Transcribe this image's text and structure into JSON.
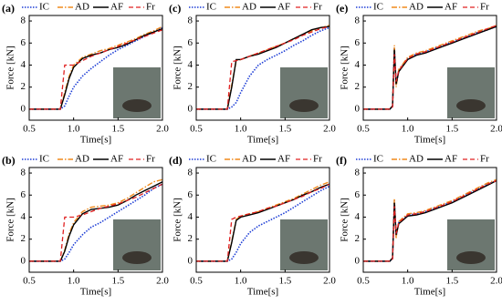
{
  "chart_data": [
    {
      "type": "line",
      "label": "(a)",
      "xlabel": "Time[s]",
      "ylabel": "Force [kN]",
      "x": [
        0.5,
        0.6,
        0.7,
        0.8,
        0.85,
        0.9,
        0.95,
        1.0,
        1.1,
        1.2,
        1.3,
        1.4,
        1.5,
        1.6,
        1.7,
        1.8,
        1.9,
        2.0
      ],
      "xlim": [
        0.5,
        2.0
      ],
      "xticks": [
        0.5,
        {
          "value": 1,
          "label": "1.0"
        },
        1.5,
        {
          "value": 2,
          "label": "2.0"
        }
      ],
      "ylim": [
        -1,
        8.5
      ],
      "yticks": [
        0,
        2,
        4,
        6,
        8
      ],
      "series": [
        {
          "name": "IC",
          "color": "#1f3fd6",
          "values": [
            0,
            0,
            0,
            0,
            0,
            0.3,
            1.2,
            2,
            3,
            3.7,
            4.3,
            4.9,
            5.4,
            5.8,
            6.2,
            6.6,
            7,
            7.4
          ]
        },
        {
          "name": "AD",
          "color": "#f08a1c",
          "values": [
            0,
            0,
            0,
            0,
            0,
            1.5,
            3,
            4,
            4.7,
            5,
            5.3,
            5.5,
            5.8,
            6.1,
            6.4,
            6.8,
            7.1,
            7.5
          ]
        },
        {
          "name": "AF",
          "color": "#000000",
          "values": [
            0,
            0,
            0,
            0,
            0,
            1.3,
            2.8,
            3.8,
            4.6,
            4.9,
            5.1,
            5.4,
            5.6,
            5.9,
            6.3,
            6.7,
            7,
            7.3
          ]
        },
        {
          "name": "Fr",
          "color": "#e02020",
          "values": [
            0,
            0,
            0,
            0,
            0,
            4,
            4,
            4,
            4.4,
            4.8,
            5.1,
            5.4,
            5.7,
            6,
            6.3,
            6.6,
            6.9,
            7.2
          ]
        }
      ]
    },
    {
      "type": "line",
      "label": "(c)",
      "xlabel": "Time[s]",
      "ylabel": "Force [kN]",
      "x": [
        0.5,
        0.6,
        0.7,
        0.8,
        0.85,
        0.9,
        0.95,
        1.0,
        1.1,
        1.2,
        1.3,
        1.4,
        1.5,
        1.6,
        1.7,
        1.8,
        1.9,
        2.0
      ],
      "xlim": [
        0.5,
        2.0
      ],
      "xticks": [
        0.5,
        {
          "value": 1,
          "label": "1.0"
        },
        1.5,
        {
          "value": 2,
          "label": "2.0"
        }
      ],
      "ylim": [
        -1,
        8.5
      ],
      "yticks": [
        0,
        2,
        4,
        6,
        8
      ],
      "series": [
        {
          "name": "IC",
          "color": "#1f3fd6",
          "values": [
            0,
            0,
            0,
            0,
            0,
            0.2,
            0.6,
            1.5,
            3,
            4,
            4.5,
            4.9,
            5.3,
            5.8,
            6.2,
            6.7,
            7.1,
            7.4
          ]
        },
        {
          "name": "AD",
          "color": "#f08a1c",
          "values": [
            0,
            0,
            0,
            0,
            0,
            2.2,
            4.4,
            4.5,
            4.8,
            5.1,
            5.4,
            5.7,
            6,
            6.4,
            6.8,
            7.1,
            7.4,
            7.6
          ]
        },
        {
          "name": "AF",
          "color": "#000000",
          "values": [
            0,
            0,
            0,
            0,
            0,
            2,
            4.5,
            4.5,
            4.8,
            5,
            5.3,
            5.6,
            6,
            6.4,
            6.8,
            7.2,
            7.4,
            7.5
          ]
        },
        {
          "name": "Fr",
          "color": "#e02020",
          "values": [
            0,
            0,
            0,
            0,
            0,
            4.3,
            4.4,
            4.5,
            4.8,
            5.1,
            5.4,
            5.7,
            6,
            6.3,
            6.7,
            7,
            7.3,
            7.5
          ]
        }
      ]
    },
    {
      "type": "line",
      "label": "(e)",
      "xlabel": "Time[s]",
      "ylabel": "Force [kN]",
      "x": [
        0.5,
        0.6,
        0.7,
        0.8,
        0.83,
        0.85,
        0.87,
        0.9,
        1.0,
        1.1,
        1.2,
        1.3,
        1.4,
        1.5,
        1.6,
        1.7,
        1.8,
        1.9,
        2.0
      ],
      "xlim": [
        0.5,
        2.0
      ],
      "xticks": [
        0.5,
        {
          "value": 1,
          "label": "1.0"
        },
        1.5,
        {
          "value": 2,
          "label": "2.0"
        }
      ],
      "ylim": [
        -1,
        8.5
      ],
      "yticks": [
        0,
        2,
        4,
        6,
        8
      ],
      "series": [
        {
          "name": "IC",
          "color": "#1f3fd6",
          "values": [
            0,
            0,
            0,
            0,
            0.3,
            5.6,
            2.2,
            3.5,
            4.6,
            5,
            5.2,
            5.5,
            5.8,
            6.1,
            6.4,
            6.7,
            7,
            7.2,
            7.5
          ]
        },
        {
          "name": "AD",
          "color": "#f08a1c",
          "values": [
            0,
            0,
            0,
            0,
            0.4,
            5.8,
            2,
            3.6,
            4.7,
            5.1,
            5.3,
            5.6,
            5.9,
            6.2,
            6.5,
            6.8,
            7.1,
            7.3,
            7.6
          ]
        },
        {
          "name": "AF",
          "color": "#000000",
          "values": [
            0,
            0,
            0,
            0,
            0.3,
            5.4,
            2.3,
            3.4,
            4.5,
            4.9,
            5.1,
            5.4,
            5.7,
            6,
            6.3,
            6.6,
            6.9,
            7.2,
            7.5
          ]
        },
        {
          "name": "Fr",
          "color": "#e02020",
          "values": [
            0,
            0,
            0,
            0,
            0.2,
            5,
            2.5,
            3.5,
            4.6,
            5,
            5.2,
            5.5,
            5.8,
            6.1,
            6.4,
            6.7,
            7,
            7.3,
            7.6
          ]
        }
      ]
    },
    {
      "type": "line",
      "label": "(b)",
      "xlabel": "Time[s]",
      "ylabel": "Force [kN]",
      "x": [
        0.5,
        0.6,
        0.7,
        0.8,
        0.85,
        0.9,
        0.95,
        1.0,
        1.1,
        1.2,
        1.3,
        1.4,
        1.5,
        1.6,
        1.7,
        1.8,
        1.9,
        2.0
      ],
      "xlim": [
        0.5,
        2.0
      ],
      "xticks": [
        0.5,
        {
          "value": 1,
          "label": "1.0"
        },
        1.5,
        {
          "value": 2,
          "label": "2.0"
        }
      ],
      "ylim": [
        -1,
        8.5
      ],
      "yticks": [
        0,
        2,
        4,
        6,
        8
      ],
      "series": [
        {
          "name": "IC",
          "color": "#1f3fd6",
          "values": [
            0,
            0,
            0,
            0,
            0,
            0.2,
            0.8,
            1.5,
            2.4,
            3.1,
            3.5,
            4,
            4.5,
            5,
            5.5,
            6,
            6.6,
            7
          ]
        },
        {
          "name": "AD",
          "color": "#f08a1c",
          "values": [
            0,
            0,
            0,
            0,
            0,
            1,
            2.5,
            3.5,
            4.5,
            4.9,
            5,
            5.1,
            5.3,
            5.7,
            6.2,
            6.7,
            7.2,
            7.4
          ]
        },
        {
          "name": "AF",
          "color": "#000000",
          "values": [
            0,
            0,
            0,
            0,
            0,
            0.9,
            2.3,
            3.3,
            4.3,
            4.7,
            4.8,
            4.9,
            5.1,
            5.5,
            6,
            6.4,
            6.8,
            7.2
          ]
        },
        {
          "name": "Fr",
          "color": "#e02020",
          "values": [
            0,
            0,
            0,
            0,
            0,
            4,
            4,
            4,
            4.2,
            4.5,
            4.8,
            5,
            5.2,
            5.5,
            5.8,
            6.2,
            6.6,
            7
          ]
        }
      ]
    },
    {
      "type": "line",
      "label": "(d)",
      "xlabel": "Time[s]",
      "ylabel": "Force [kN]",
      "x": [
        0.5,
        0.6,
        0.7,
        0.8,
        0.85,
        0.9,
        0.95,
        1.0,
        1.1,
        1.2,
        1.3,
        1.4,
        1.5,
        1.6,
        1.7,
        1.8,
        1.9,
        2.0
      ],
      "xlim": [
        0.5,
        2.0
      ],
      "xticks": [
        0.5,
        {
          "value": 1,
          "label": "1.0"
        },
        1.5,
        {
          "value": 2,
          "label": "2.0"
        }
      ],
      "ylim": [
        -1,
        8.5
      ],
      "yticks": [
        0,
        2,
        4,
        6,
        8
      ],
      "series": [
        {
          "name": "IC",
          "color": "#1f3fd6",
          "values": [
            0,
            0,
            0,
            0,
            0,
            0.2,
            0.8,
            1.6,
            2.6,
            3.2,
            3.6,
            4,
            4.4,
            4.9,
            5.4,
            5.9,
            6.4,
            6.8
          ]
        },
        {
          "name": "AD",
          "color": "#f08a1c",
          "values": [
            0,
            0,
            0,
            0,
            0,
            1.8,
            3.8,
            4.1,
            4.3,
            4.5,
            4.8,
            5.1,
            5.4,
            5.7,
            6.1,
            6.5,
            6.9,
            7.2
          ]
        },
        {
          "name": "AF",
          "color": "#000000",
          "values": [
            0,
            0,
            0,
            0,
            0,
            1.7,
            3.7,
            4,
            4.2,
            4.4,
            4.7,
            5,
            5.3,
            5.6,
            6,
            6.3,
            6.7,
            7
          ]
        },
        {
          "name": "Fr",
          "color": "#e02020",
          "values": [
            0,
            0,
            0,
            0,
            0,
            3.8,
            4,
            4.1,
            4.3,
            4.5,
            4.8,
            5,
            5.3,
            5.6,
            5.9,
            6.3,
            6.6,
            7
          ]
        }
      ]
    },
    {
      "type": "line",
      "label": "(f)",
      "xlabel": "Time[s]",
      "ylabel": "Force [kN]",
      "x": [
        0.5,
        0.6,
        0.7,
        0.8,
        0.83,
        0.85,
        0.87,
        0.9,
        1.0,
        1.1,
        1.2,
        1.3,
        1.4,
        1.5,
        1.6,
        1.7,
        1.8,
        1.9,
        2.0
      ],
      "xlim": [
        0.5,
        2.0
      ],
      "xticks": [
        0.5,
        {
          "value": 1,
          "label": "1.0"
        },
        1.5,
        {
          "value": 2,
          "label": "2.0"
        }
      ],
      "ylim": [
        -1,
        8.5
      ],
      "yticks": [
        0,
        2,
        4,
        6,
        8
      ],
      "series": [
        {
          "name": "IC",
          "color": "#1f3fd6",
          "values": [
            0,
            0,
            0,
            0,
            0.3,
            5.5,
            2.3,
            3.5,
            4.2,
            4.3,
            4.5,
            4.8,
            5.1,
            5.4,
            5.8,
            6.2,
            6.6,
            7,
            7.3
          ]
        },
        {
          "name": "AD",
          "color": "#f08a1c",
          "values": [
            0,
            0,
            0,
            0,
            0.4,
            5.7,
            2.1,
            3.6,
            4.3,
            4.4,
            4.6,
            4.9,
            5.2,
            5.5,
            5.9,
            6.3,
            6.7,
            7.1,
            7.4
          ]
        },
        {
          "name": "AF",
          "color": "#000000",
          "values": [
            0,
            0,
            0,
            0,
            0.3,
            5.3,
            2.4,
            3.4,
            4.1,
            4.2,
            4.4,
            4.7,
            5,
            5.3,
            5.7,
            6.1,
            6.5,
            6.9,
            7.3
          ]
        },
        {
          "name": "Fr",
          "color": "#e02020",
          "values": [
            0,
            0,
            0,
            0,
            0.2,
            5,
            2.5,
            3.5,
            4.2,
            4.3,
            4.5,
            4.8,
            5.1,
            5.4,
            5.8,
            6.2,
            6.6,
            7,
            7.3
          ]
        }
      ]
    }
  ]
}
